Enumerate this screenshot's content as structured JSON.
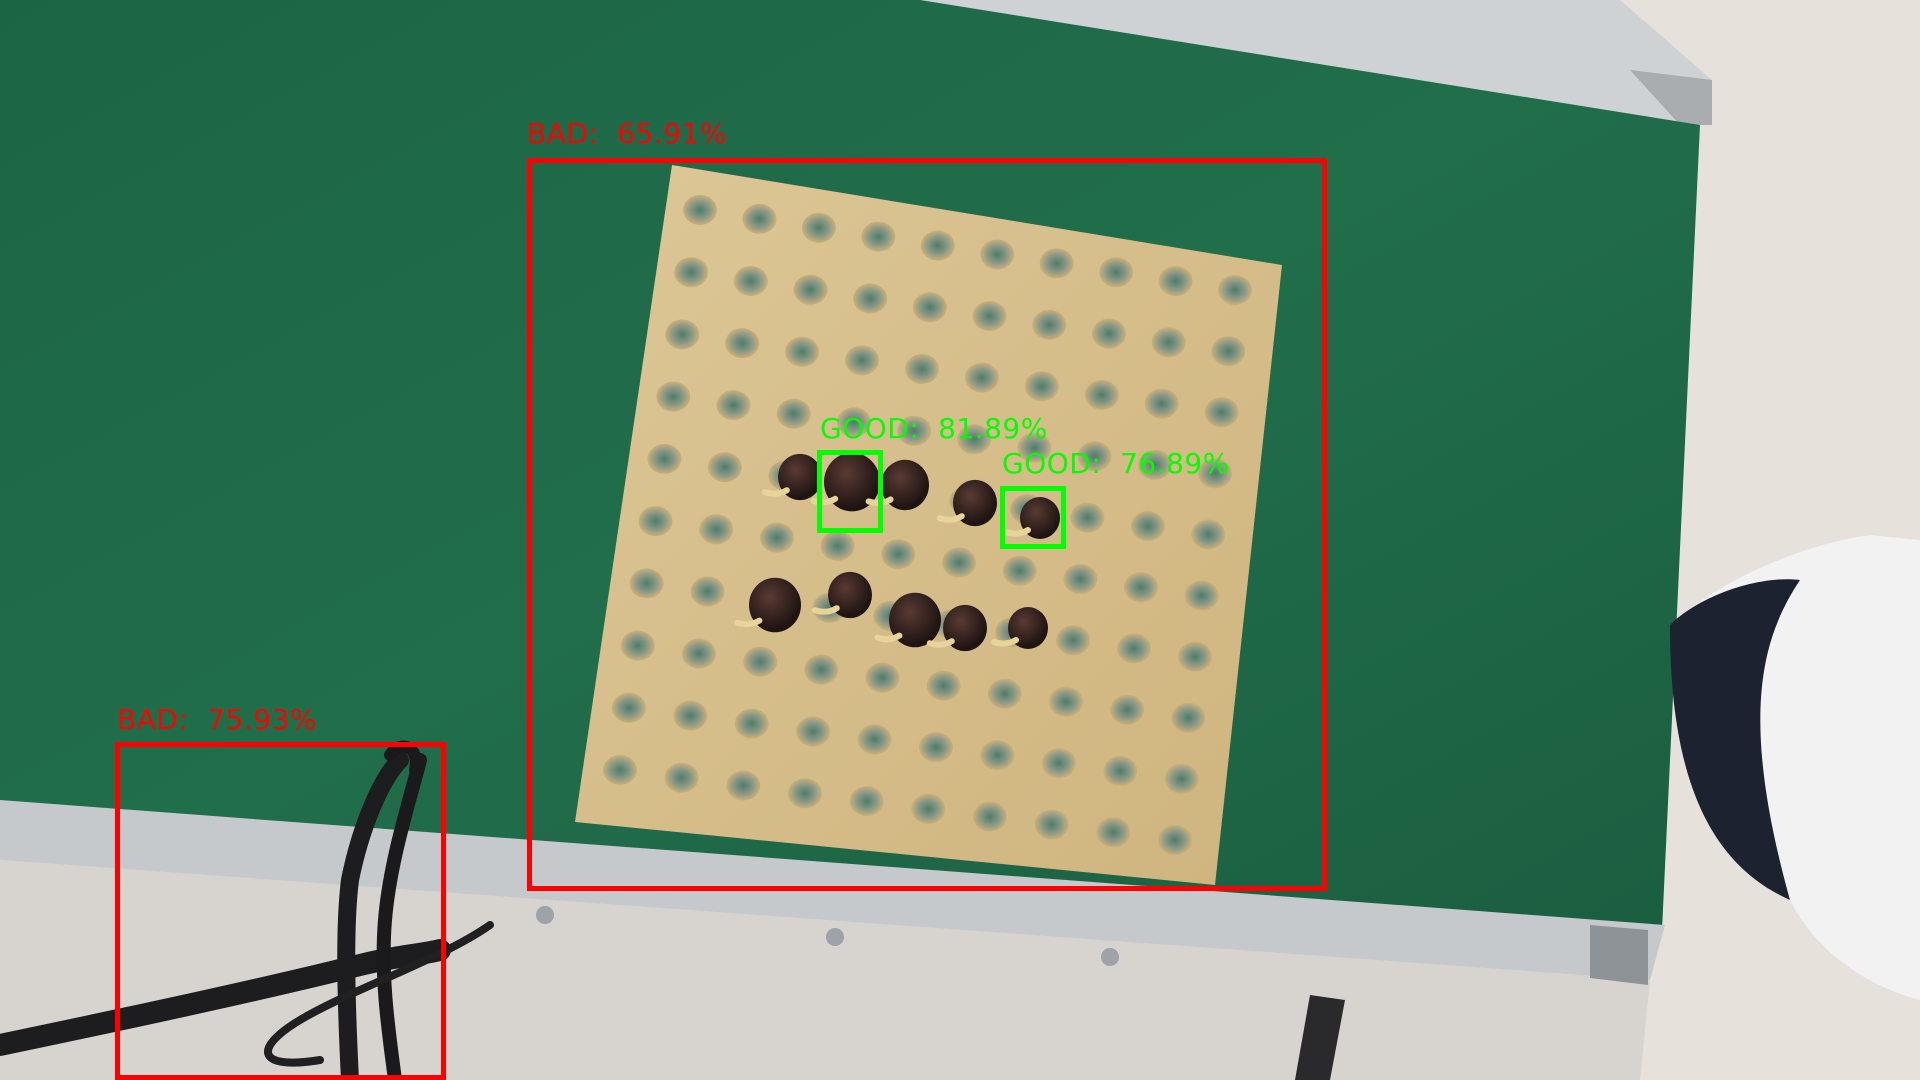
{
  "colors": {
    "bad": "#ff0000",
    "good": "#00ff00",
    "belt": "#1e6a47",
    "tray": "#d9c28e",
    "floor": "#e4dfd8"
  },
  "detections": [
    {
      "label": "BAD",
      "score_text": "65.91%"
    },
    {
      "label": "BAD",
      "score_text": "75.93%"
    },
    {
      "label": "GOOD",
      "score_text": "81.89%"
    },
    {
      "label": "GOOD",
      "score_text": "76.89%"
    }
  ],
  "scene": {
    "objects": [
      "conveyor-belt",
      "seed-tray",
      "germinated-seeds",
      "cable",
      "person-shoulder"
    ]
  }
}
